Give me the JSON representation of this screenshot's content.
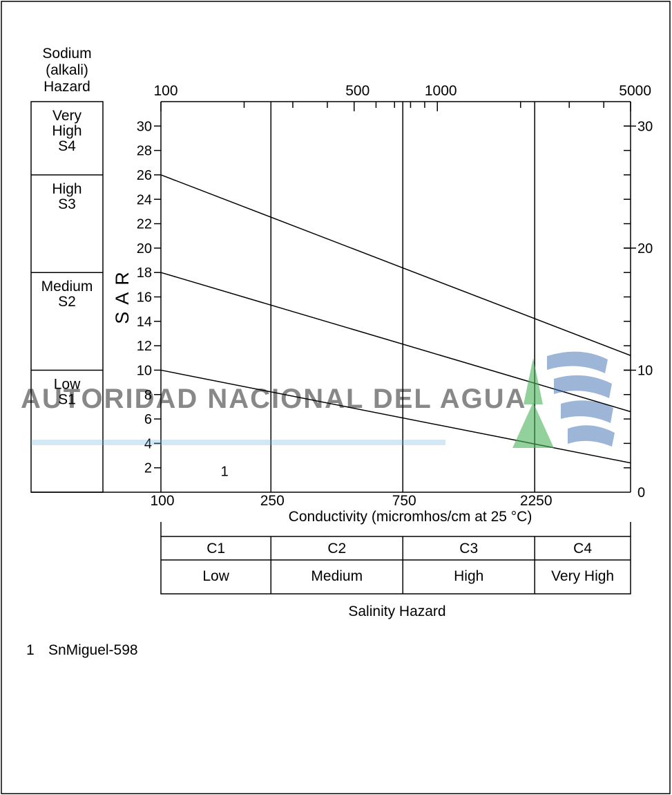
{
  "chart_data": {
    "type": "line",
    "title": "",
    "xlabel": "Conductivity (micromhos/cm at 25 °C)",
    "ylabel": "S A R",
    "x_scale": "log",
    "xlim": [
      100,
      5000
    ],
    "ylim": [
      0,
      32
    ],
    "x_top_ticks": [
      {
        "value": 100,
        "label": "100"
      },
      {
        "value": 500,
        "label": "500"
      },
      {
        "value": 1000,
        "label": "1000"
      },
      {
        "value": 5000,
        "label": "5000"
      }
    ],
    "x_top_minor": [
      200,
      300,
      400,
      600,
      700,
      800,
      900,
      2000,
      3000,
      4000
    ],
    "x_bottom_ticks": [
      {
        "value": 100,
        "label": "100"
      },
      {
        "value": 250,
        "label": "250"
      },
      {
        "value": 750,
        "label": "750"
      },
      {
        "value": 2250,
        "label": "2250"
      }
    ],
    "y_left_ticks": [
      2,
      4,
      6,
      8,
      10,
      12,
      14,
      16,
      18,
      20,
      22,
      24,
      26,
      28,
      30
    ],
    "y_right_labeled": [
      0,
      10,
      20,
      30
    ],
    "y_right_minor": [
      2,
      4,
      6,
      8,
      10,
      12,
      14,
      16,
      18,
      20,
      22,
      24,
      26,
      28,
      30
    ],
    "vertical_boundaries": [
      250,
      750,
      2250
    ],
    "series": [
      {
        "x": [
          100,
          5000
        ],
        "y": [
          26,
          11.2
        ]
      },
      {
        "x": [
          100,
          5000
        ],
        "y": [
          18,
          6.6
        ]
      },
      {
        "x": [
          100,
          5000
        ],
        "y": [
          10,
          2.4
        ]
      }
    ],
    "points": [
      {
        "id": "1",
        "x": 170,
        "y": 1.0
      }
    ],
    "sodium_panel": {
      "header": [
        "Sodium",
        "(alkali)",
        "Hazard"
      ],
      "classes": [
        {
          "lines": [
            "Very",
            "High",
            "S4"
          ],
          "y_from": 26,
          "y_to": 32
        },
        {
          "lines": [
            "High",
            "S3"
          ],
          "y_from": 18,
          "y_to": 26
        },
        {
          "lines": [
            "Medium",
            "S2"
          ],
          "y_from": 10,
          "y_to": 18
        },
        {
          "lines": [
            "Low",
            "S1"
          ],
          "y_from": 0,
          "y_to": 10
        }
      ]
    },
    "salinity_table": {
      "codes": [
        "C1",
        "C2",
        "C3",
        "C4"
      ],
      "labels": [
        "Low",
        "Medium",
        "High",
        "Very High"
      ],
      "caption": "Salinity Hazard"
    },
    "legend": [
      {
        "id": "1",
        "name": "SnMiguel-598"
      }
    ]
  },
  "watermark": {
    "text": "AUTORIDAD NACIONAL DEL AGUA",
    "text_color": "#6fb0dc",
    "leaf_color": "#4cb35a",
    "wave_color": "#3f6fb0"
  }
}
